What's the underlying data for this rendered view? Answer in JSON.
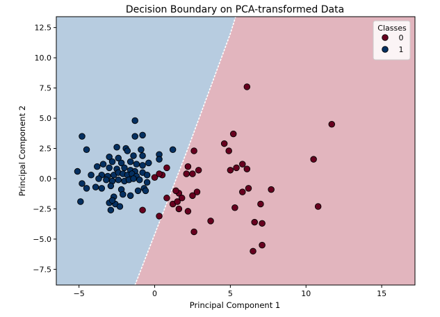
{
  "chart_data": {
    "type": "scatter",
    "title": "Decision Boundary on PCA-transformed Data",
    "xlabel": "Principal Component 1",
    "ylabel": "Principal Component 2",
    "xlim": [
      -6.5,
      17.2
    ],
    "ylim": [
      -8.8,
      13.4
    ],
    "xticks": [
      -5,
      0,
      5,
      10,
      15
    ],
    "xtick_labels": [
      "−5",
      "0",
      "5",
      "10",
      "15"
    ],
    "yticks": [
      -7.5,
      -5.0,
      -2.5,
      0.0,
      2.5,
      5.0,
      7.5,
      10.0,
      12.5
    ],
    "ytick_labels": [
      "−7.5",
      "−5.0",
      "−2.5",
      "0.0",
      "2.5",
      "5.0",
      "7.5",
      "10.0",
      "12.5"
    ],
    "grid": false,
    "legend": {
      "title": "Classes",
      "position": "top-right"
    },
    "decision_regions": [
      {
        "class": "1",
        "color": "#b7cce0",
        "description_side": "upper-left"
      },
      {
        "class": "0",
        "color": "#e2b5be",
        "description_side": "lower-right"
      }
    ],
    "boundary_line": {
      "points": [
        [
          -1.3,
          -8.8
        ],
        [
          2.2,
          2.5
        ],
        [
          5.0,
          12.0
        ],
        [
          5.35,
          13.4
        ]
      ]
    },
    "series": [
      {
        "name": "0",
        "color": "#67001f",
        "points": [
          [
            6.1,
            7.6
          ],
          [
            11.7,
            4.5
          ],
          [
            5.2,
            3.7
          ],
          [
            4.6,
            2.9
          ],
          [
            4.9,
            2.3
          ],
          [
            10.5,
            1.6
          ],
          [
            2.6,
            2.3
          ],
          [
            2.2,
            1.0
          ],
          [
            0.8,
            0.9
          ],
          [
            2.9,
            0.7
          ],
          [
            2.5,
            0.4
          ],
          [
            2.1,
            0.4
          ],
          [
            5.0,
            0.7
          ],
          [
            5.4,
            0.9
          ],
          [
            5.8,
            1.2
          ],
          [
            6.1,
            0.8
          ],
          [
            0.0,
            0.1
          ],
          [
            0.5,
            0.3
          ],
          [
            0.3,
            0.4
          ],
          [
            5.8,
            -1.1
          ],
          [
            6.2,
            -0.8
          ],
          [
            7.7,
            -0.9
          ],
          [
            2.8,
            -1.1
          ],
          [
            1.6,
            -1.2
          ],
          [
            1.4,
            -1.0
          ],
          [
            2.5,
            -1.4
          ],
          [
            0.8,
            -1.6
          ],
          [
            1.8,
            -1.6
          ],
          [
            1.2,
            -2.1
          ],
          [
            1.5,
            -1.9
          ],
          [
            1.6,
            -2.5
          ],
          [
            2.2,
            -2.7
          ],
          [
            5.3,
            -2.4
          ],
          [
            7.0,
            -2.1
          ],
          [
            10.8,
            -2.3
          ],
          [
            -0.8,
            -2.6
          ],
          [
            0.3,
            -3.1
          ],
          [
            3.7,
            -3.5
          ],
          [
            6.6,
            -3.6
          ],
          [
            7.1,
            -3.7
          ],
          [
            2.6,
            -4.4
          ],
          [
            7.1,
            -5.5
          ],
          [
            6.5,
            -6.0
          ]
        ]
      },
      {
        "name": "1",
        "color": "#053061",
        "points": [
          [
            -1.3,
            4.8
          ],
          [
            -4.8,
            3.5
          ],
          [
            -1.3,
            3.5
          ],
          [
            -0.8,
            3.6
          ],
          [
            -4.5,
            2.4
          ],
          [
            -2.5,
            2.6
          ],
          [
            -1.9,
            2.5
          ],
          [
            -1.8,
            2.3
          ],
          [
            -0.9,
            2.4
          ],
          [
            1.2,
            2.4
          ],
          [
            -3.0,
            1.8
          ],
          [
            -2.4,
            1.7
          ],
          [
            -1.4,
            1.9
          ],
          [
            -0.8,
            1.9
          ],
          [
            0.3,
            2.0
          ],
          [
            0.3,
            1.6
          ],
          [
            -3.4,
            1.2
          ],
          [
            -2.8,
            1.4
          ],
          [
            -2.2,
            1.3
          ],
          [
            -1.6,
            1.4
          ],
          [
            -1.2,
            1.2
          ],
          [
            -0.8,
            1.1
          ],
          [
            -0.4,
            1.3
          ],
          [
            -3.8,
            1.0
          ],
          [
            -3.0,
            0.9
          ],
          [
            -2.5,
            0.8
          ],
          [
            -2.0,
            0.9
          ],
          [
            -1.6,
            0.7
          ],
          [
            -1.3,
            0.6
          ],
          [
            -0.8,
            0.5
          ],
          [
            -5.1,
            0.6
          ],
          [
            -4.2,
            0.3
          ],
          [
            -3.5,
            0.3
          ],
          [
            -3.1,
            0.2
          ],
          [
            -2.7,
            0.3
          ],
          [
            -2.4,
            0.5
          ],
          [
            -2.1,
            0.4
          ],
          [
            -1.8,
            0.3
          ],
          [
            -1.5,
            0.4
          ],
          [
            -1.2,
            0.2
          ],
          [
            -0.5,
            0.3
          ],
          [
            -3.7,
            0.0
          ],
          [
            -3.2,
            -0.1
          ],
          [
            -2.8,
            -0.2
          ],
          [
            -2.4,
            -0.1
          ],
          [
            -2.0,
            -0.2
          ],
          [
            -1.7,
            -0.1
          ],
          [
            -1.4,
            0.0
          ],
          [
            -1.0,
            -0.1
          ],
          [
            -0.5,
            -0.3
          ],
          [
            -4.8,
            -0.4
          ],
          [
            -4.5,
            -0.8
          ],
          [
            -3.9,
            -0.7
          ],
          [
            -3.5,
            -0.8
          ],
          [
            -2.9,
            -0.6
          ],
          [
            -2.2,
            -0.9
          ],
          [
            -0.7,
            -0.8
          ],
          [
            -0.6,
            -1.0
          ],
          [
            -2.1,
            -1.3
          ],
          [
            -1.1,
            -1.0
          ],
          [
            -2.7,
            -1.5
          ],
          [
            -1.6,
            -1.4
          ],
          [
            -3.0,
            -2.0
          ],
          [
            -2.6,
            -2.1
          ],
          [
            -2.3,
            -2.3
          ],
          [
            -2.9,
            -2.6
          ],
          [
            -4.9,
            -1.9
          ],
          [
            -2.8,
            -1.8
          ]
        ]
      }
    ]
  }
}
